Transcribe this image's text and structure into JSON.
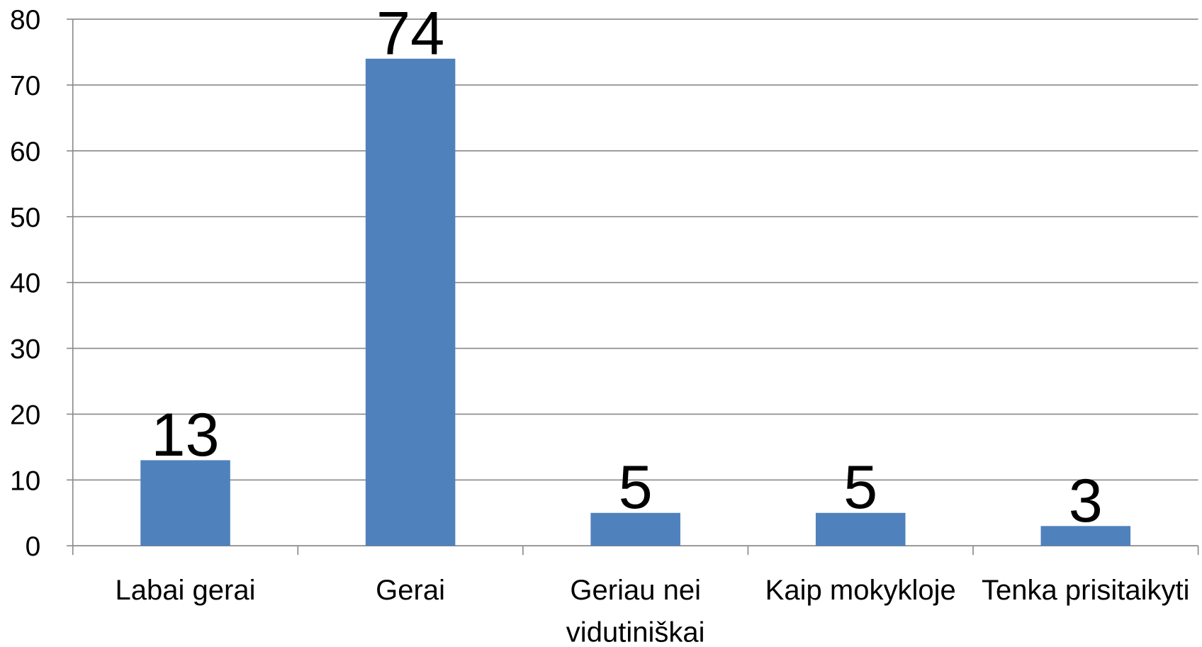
{
  "chart_data": {
    "type": "bar",
    "categories": [
      "Labai gerai",
      "Gerai",
      "Geriau nei vidutiniškai",
      "Kaip mokykloje",
      "Tenka prisitaikyti"
    ],
    "values": [
      13,
      74,
      5,
      5,
      3
    ],
    "color": "#4f81bd",
    "ylim": [
      0,
      80
    ],
    "yticks": [
      0,
      10,
      20,
      30,
      40,
      50,
      60,
      70,
      80
    ],
    "grid": true
  }
}
